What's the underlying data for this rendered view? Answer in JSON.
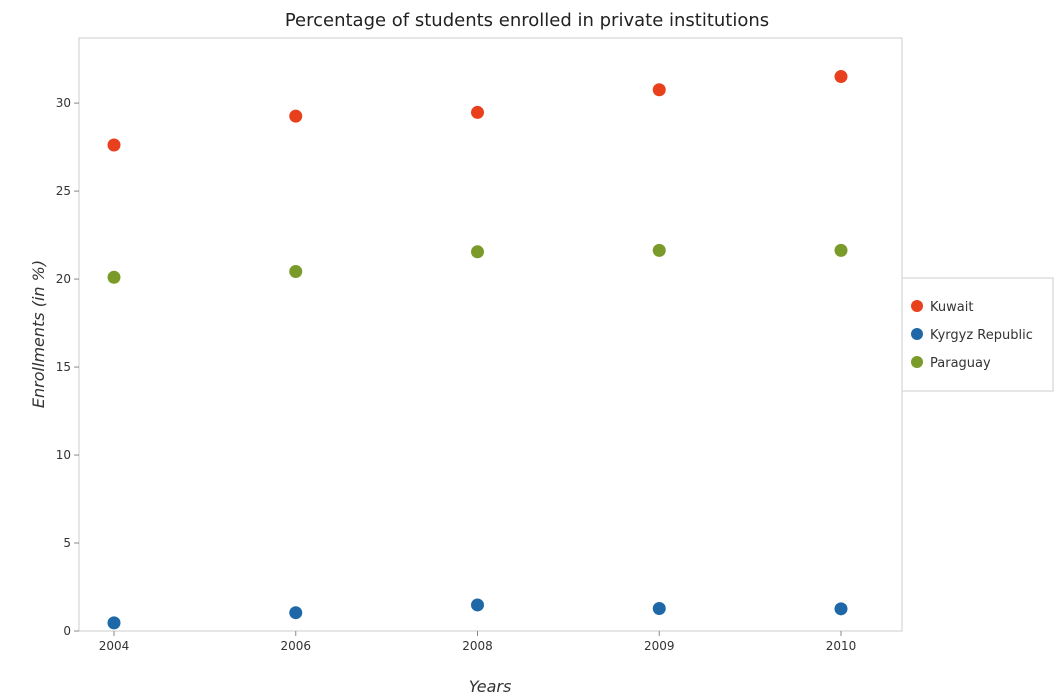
{
  "chart_data": {
    "type": "scatter",
    "title": "Percentage of students enrolled in private institutions",
    "xlabel": "Years",
    "ylabel": "Enrollments (in %)",
    "categories": [
      "2004",
      "2006",
      "2008",
      "2009",
      "2010"
    ],
    "ylim": [
      0,
      33.7
    ],
    "yticks": [
      "0",
      "5",
      "10",
      "15",
      "20",
      "25",
      "30"
    ],
    "grid": false,
    "legend_position": "right",
    "series": [
      {
        "name": "Kuwait",
        "color": "#e8401c",
        "values": [
          27.62,
          29.26,
          29.47,
          30.76,
          31.51
        ]
      },
      {
        "name": "Kyrgyz Republic",
        "color": "#1f68a8",
        "values": [
          0.46,
          1.04,
          1.48,
          1.28,
          1.26
        ]
      },
      {
        "name": "Paraguay",
        "color": "#7a9a2a",
        "values": [
          20.1,
          20.43,
          21.55,
          21.63,
          21.63
        ]
      }
    ]
  }
}
